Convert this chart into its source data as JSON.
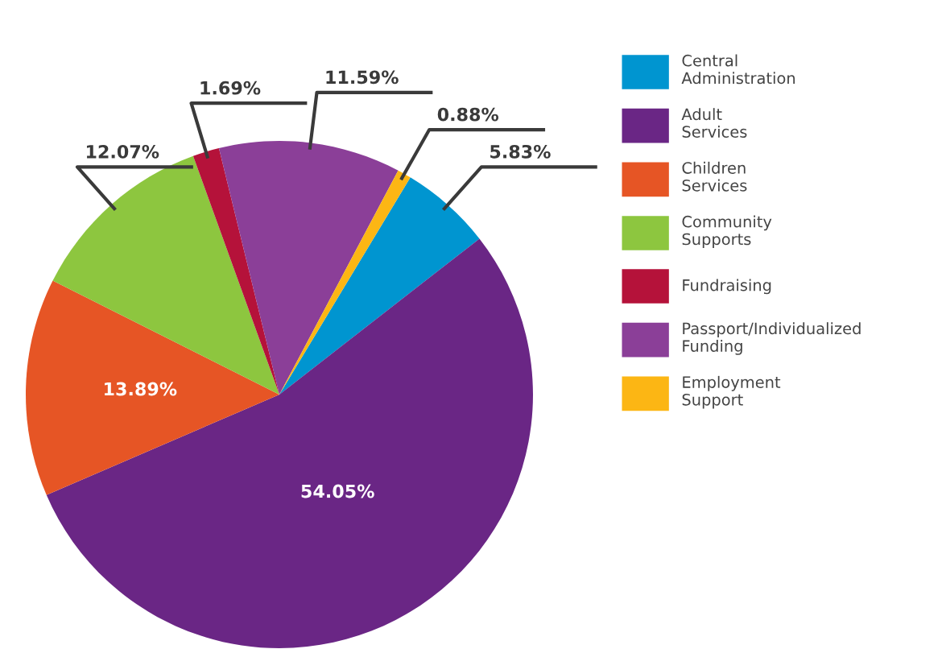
{
  "chart_data": {
    "type": "pie",
    "categories": [
      "Central\nAdministration",
      "Adult\nServices",
      "Children\nServices",
      "Community\nSupports",
      "Fundraising",
      "Passport/Individualized\nFunding",
      "Employment\nSupport"
    ],
    "values": [
      5.83,
      54.05,
      13.89,
      12.07,
      1.69,
      11.59,
      0.88
    ],
    "colors": [
      "#0095d0",
      "#6a2685",
      "#e65525",
      "#8dc63f",
      "#b5123a",
      "#8b3f98",
      "#fcb614"
    ],
    "value_labels": [
      "5.83%",
      "54.05%",
      "13.89%",
      "12.07%",
      "1.69%",
      "11.59%",
      "0.88%"
    ],
    "legend": "right"
  }
}
